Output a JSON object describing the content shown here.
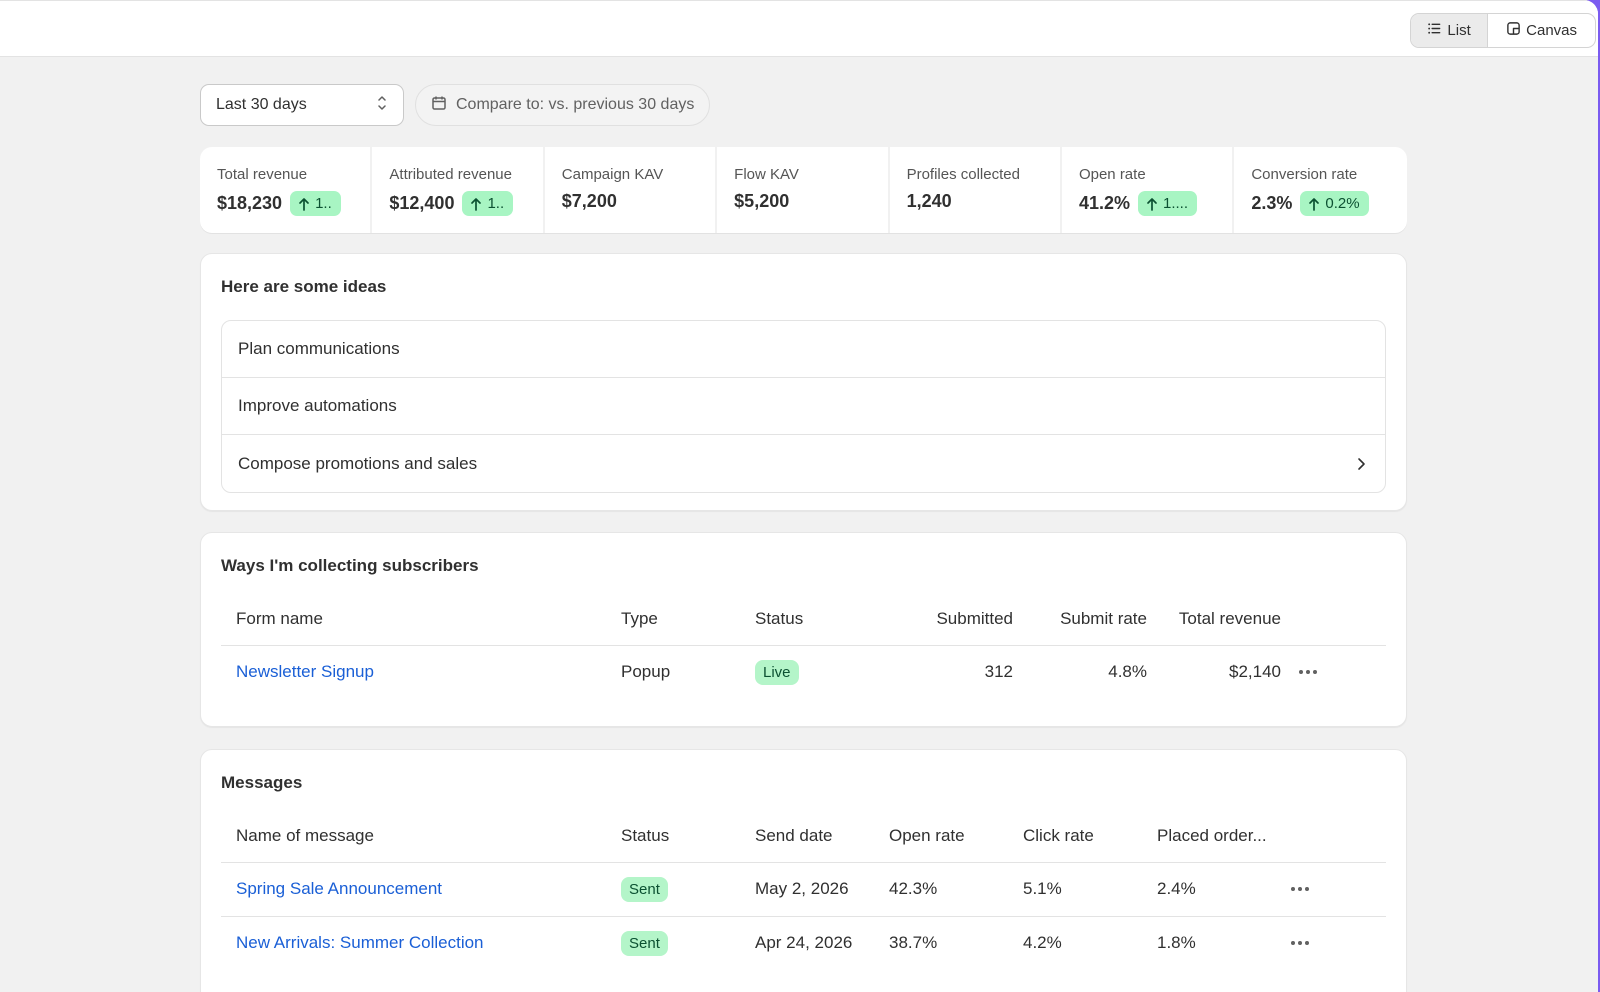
{
  "topbar": {
    "view_toggle": {
      "list_label": "List",
      "canvas_label": "Canvas",
      "active": "List"
    }
  },
  "filters": {
    "date_range": "Last 30 days",
    "compare": "Compare to: vs. previous 30 days"
  },
  "metrics": [
    {
      "label": "Total revenue",
      "value": "$18,230",
      "trend": "1.."
    },
    {
      "label": "Attributed revenue",
      "value": "$12,400",
      "trend": "1.."
    },
    {
      "label": "Campaign KAV",
      "value": "$7,200",
      "trend": ""
    },
    {
      "label": "Flow KAV",
      "value": "$5,200",
      "trend": ""
    },
    {
      "label": "Profiles collected",
      "value": "1,240",
      "trend": ""
    },
    {
      "label": "Open rate",
      "value": "41.2%",
      "trend": "1...."
    },
    {
      "label": "Conversion rate",
      "value": "2.3%",
      "trend": "0.2%"
    }
  ],
  "ideas": {
    "title": "Here are some ideas",
    "items": [
      "Plan communications",
      "Improve automations",
      "Compose promotions and sales"
    ]
  },
  "collecting": {
    "title": "Ways I'm collecting subscribers",
    "columns": [
      "Form name",
      "Type",
      "Status",
      "Submitted",
      "Submit rate",
      "Total revenue"
    ],
    "rows": [
      {
        "name": "Newsletter Signup",
        "type": "Popup",
        "status": "Live",
        "submitted": "312",
        "submit_rate": "4.8%",
        "revenue": "$2,140"
      }
    ]
  },
  "messages": {
    "title": "Messages",
    "columns": [
      "Name of message",
      "Status",
      "Send date",
      "Open rate",
      "Click rate",
      "Placed order..."
    ],
    "rows": [
      {
        "name": "Spring Sale Announcement",
        "status": "Sent",
        "date": "May 2, 2026",
        "open": "42.3%",
        "click": "5.1%",
        "placed": "2.4%"
      },
      {
        "name": "New Arrivals: Summer Collection",
        "status": "Sent",
        "date": "Apr 24, 2026",
        "open": "38.7%",
        "click": "4.2%",
        "placed": "1.8%"
      }
    ]
  },
  "colors": {
    "accent_frame": "#7b5cf0",
    "link": "#1a5fd6",
    "success_badge": "#b4f5c9"
  }
}
